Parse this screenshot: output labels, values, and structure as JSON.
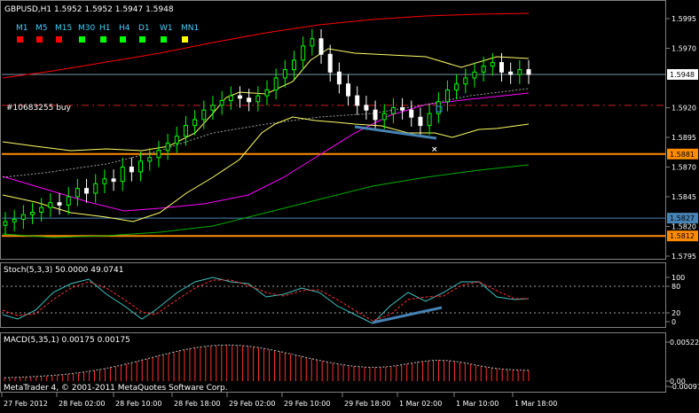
{
  "header": {
    "title": "GBPUSD,H1  1.5952 1.5952 1.5947 1.5948"
  },
  "timeframes": [
    {
      "label": "M1",
      "color": "#ff0000"
    },
    {
      "label": "M5",
      "color": "#ff0000"
    },
    {
      "label": "M15",
      "color": "#ff0000"
    },
    {
      "label": "M30",
      "color": "#00ff00"
    },
    {
      "label": "H1",
      "color": "#00ff00"
    },
    {
      "label": "H4",
      "color": "#00ff00"
    },
    {
      "label": "D1",
      "color": "#00ff00"
    },
    {
      "label": "W1",
      "color": "#00ff00"
    },
    {
      "label": "MN1",
      "color": "#ffff00"
    }
  ],
  "order_label": "#10683255 buy",
  "price_axis": [
    "1.5995",
    "1.5970",
    "1.5920",
    "1.5895",
    "1.5870",
    "1.5845",
    "1.5820",
    "1.5795"
  ],
  "price_tags": [
    {
      "text": "1.5948",
      "price": 1.5948,
      "bg": "#ffffff",
      "fg": "#000000"
    },
    {
      "text": "1.5881",
      "price": 1.5881,
      "bg": "#ff8c00",
      "fg": "#000000"
    },
    {
      "text": "1.5827",
      "price": 1.5827,
      "bg": "#4682b4",
      "fg": "#000000"
    },
    {
      "text": "1.5812",
      "price": 1.5812,
      "bg": "#ff8c00",
      "fg": "#000000"
    }
  ],
  "stoch": {
    "label": "Stoch(5,3,3) 50.0000 49.0741",
    "axis": [
      "100",
      "80",
      "20",
      "0"
    ]
  },
  "macd": {
    "label": "MACD(5,35,1) 0.00175 0.00175",
    "axis": [
      "0.00522",
      "0.00",
      "-0.00097"
    ]
  },
  "watermark": "MetaTrader 4, © 2001-2011 MetaQuotes Software Corp.",
  "time_axis": [
    "27 Feb 2012",
    "28 Feb 02:00",
    "28 Feb 10:00",
    "28 Feb 18:00",
    "29 Feb 02:00",
    "29 Feb 10:00",
    "29 Feb 18:00",
    "1 Mar 02:00",
    "1 Mar 10:00",
    "1 Mar 18:00"
  ],
  "colors": {
    "bull": "#00ff00",
    "bear": "#ffffff",
    "upper_ma": "#ff0000",
    "env": "#ffff66",
    "magenta": "#ff00ff",
    "green_ma": "#00b000",
    "stoch_main": "#40c0c0",
    "stoch_signal": "#ff3030",
    "trend": "#4682b4",
    "orange": "#ff8c00"
  }
}
